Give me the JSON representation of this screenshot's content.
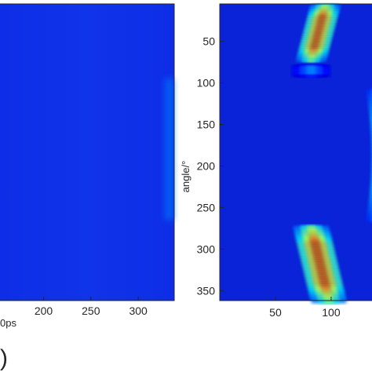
{
  "chart_data": [
    {
      "type": "heatmap",
      "colormap": "jet",
      "xlabel": "0ps",
      "x_ticks": [
        200,
        250,
        300
      ],
      "x_visible_range": [
        154,
        338
      ],
      "y_range": [
        5,
        362
      ],
      "y_ticks_shown": false,
      "panel_tag": ")",
      "background_level": 0.15,
      "features": [
        {
          "description": "faint bright edge",
          "x_range": [
            328,
            338
          ],
          "y_range": [
            95,
            265
          ],
          "level": 0.25
        }
      ]
    },
    {
      "type": "heatmap",
      "colormap": "jet",
      "ylabel": "angle/°",
      "y_ticks": [
        50,
        100,
        150,
        200,
        250,
        300,
        350
      ],
      "x_ticks": [
        50,
        100
      ],
      "x_visible_range": [
        0,
        155
      ],
      "y_range": [
        5,
        362
      ],
      "background_level": 0.13,
      "bands": [
        {
          "name": "upper band",
          "y_range": [
            5,
            72
          ],
          "x_start": 95,
          "x_end": 82,
          "width": 10,
          "peak": 0.95
        },
        {
          "name": "upper small blob",
          "y_range": [
            78,
            92
          ],
          "x_start": 82,
          "x_end": 82,
          "width": 12,
          "peak": 0.32
        },
        {
          "name": "middle arc",
          "y_range": [
            108,
            262
          ],
          "x_center": 150,
          "x_at_ends": 145,
          "width": 10,
          "peak": 0.7
        },
        {
          "name": "lower band",
          "y_range": [
            272,
            362
          ],
          "x_start": 82,
          "x_end": 98,
          "width": 12,
          "peak": 0.95
        }
      ]
    }
  ]
}
